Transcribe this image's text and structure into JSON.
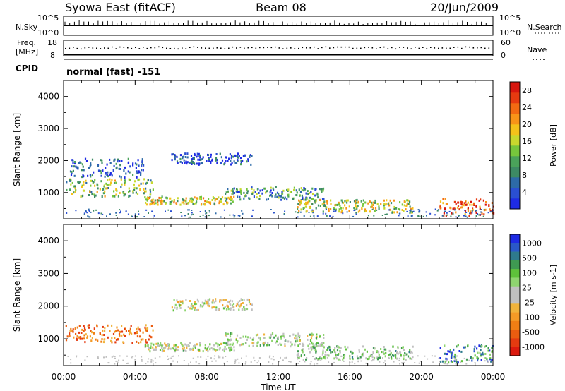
{
  "header": {
    "station": "Syowa East (fitACF)",
    "beam": "Beam 08",
    "date": "20/Jun/2009"
  },
  "top_panels": {
    "nsky_label": "N.Sky",
    "nsky_top": "10^5",
    "nsky_bottom": "10^0",
    "nsearch_label": "N.Search",
    "nsearch_top": "10^5",
    "nsearch_bottom": "10^0",
    "freq_label_1": "Freq.",
    "freq_label_2": "[MHz]",
    "freq_top": "18",
    "freq_bottom": "8",
    "nave_label": "Nave",
    "nave_top": "60",
    "nave_bottom": "0",
    "cpid_label": "CPID",
    "cpid_value": "normal (fast) -151"
  },
  "chart_data": [
    {
      "type": "heatmap",
      "title": "",
      "ylabel": "Slant Range [km]",
      "xlabel": "",
      "ylim": [
        180,
        4500
      ],
      "yticks": [
        "1000",
        "2000",
        "3000",
        "4000"
      ],
      "yticks_values": [
        1000,
        2000,
        3000,
        4000
      ],
      "colorbar": {
        "label": "Power [dB]",
        "ticks": [
          "4",
          "8",
          "12",
          "16",
          "20",
          "24",
          "28"
        ],
        "colors": [
          "#1e2be4",
          "#2a4fd2",
          "#2d6aa8",
          "#3d8a64",
          "#4aa25a",
          "#76c63c",
          "#c8d82e",
          "#f4c21a",
          "#f89418",
          "#f26a12",
          "#e63a10",
          "#d8160e"
        ]
      },
      "echo_bands": [
        {
          "x0": 0.1,
          "x1": 5.0,
          "y0": 900,
          "y1": 1450,
          "level": 0.45
        },
        {
          "x0": 0.3,
          "x1": 4.5,
          "y0": 1500,
          "y1": 2100,
          "level": 0.15
        },
        {
          "x0": 4.5,
          "x1": 9.5,
          "y0": 650,
          "y1": 900,
          "level": 0.55
        },
        {
          "x0": 6.0,
          "x1": 10.5,
          "y0": 1900,
          "y1": 2250,
          "level": 0.1
        },
        {
          "x0": 9.0,
          "x1": 14.5,
          "y0": 800,
          "y1": 1200,
          "level": 0.3
        },
        {
          "x0": 13.0,
          "x1": 19.5,
          "y0": 400,
          "y1": 800,
          "level": 0.5
        },
        {
          "x0": 21.0,
          "x1": 24.0,
          "y0": 300,
          "y1": 850,
          "level": 0.85
        }
      ]
    },
    {
      "type": "heatmap",
      "title": "",
      "ylabel": "Slant Range [km]",
      "xlabel": "Time UT",
      "ylim": [
        180,
        4500
      ],
      "xlim": [
        0,
        24
      ],
      "yticks": [
        "1000",
        "2000",
        "3000",
        "4000"
      ],
      "yticks_values": [
        1000,
        2000,
        3000,
        4000
      ],
      "xticks": [
        "00:00",
        "04:00",
        "08:00",
        "12:00",
        "16:00",
        "20:00",
        "00:00"
      ],
      "xticks_values": [
        0,
        4,
        8,
        12,
        16,
        20,
        24
      ],
      "colorbar": {
        "label": "Velocity [m s-1]",
        "ticks": [
          "1000",
          "500",
          "100",
          "25",
          "-25",
          "-100",
          "-500",
          "-1000"
        ],
        "colors": [
          "#1e2be4",
          "#2a58c8",
          "#2e7a8c",
          "#3f9a52",
          "#5ec13a",
          "#8fd470",
          "#c0c0c0",
          "#c0c0c0",
          "#f0b33c",
          "#f49a26",
          "#f07e14",
          "#ea5c10",
          "#e43a10",
          "#dc1a0e"
        ]
      },
      "echo_bands": [
        {
          "x0": 0.1,
          "x1": 5.0,
          "y0": 900,
          "y1": 1450,
          "level": -0.5
        },
        {
          "x0": 4.5,
          "x1": 9.5,
          "y0": 650,
          "y1": 900,
          "level": 0.1
        },
        {
          "x0": 6.0,
          "x1": 10.5,
          "y0": 1900,
          "y1": 2250,
          "level": 0.0
        },
        {
          "x0": 9.0,
          "x1": 14.5,
          "y0": 800,
          "y1": 1200,
          "level": 0.15
        },
        {
          "x0": 13.0,
          "x1": 19.5,
          "y0": 400,
          "y1": 800,
          "level": 0.25
        },
        {
          "x0": 21.0,
          "x1": 24.0,
          "y0": 300,
          "y1": 850,
          "level": 0.6
        }
      ]
    }
  ]
}
